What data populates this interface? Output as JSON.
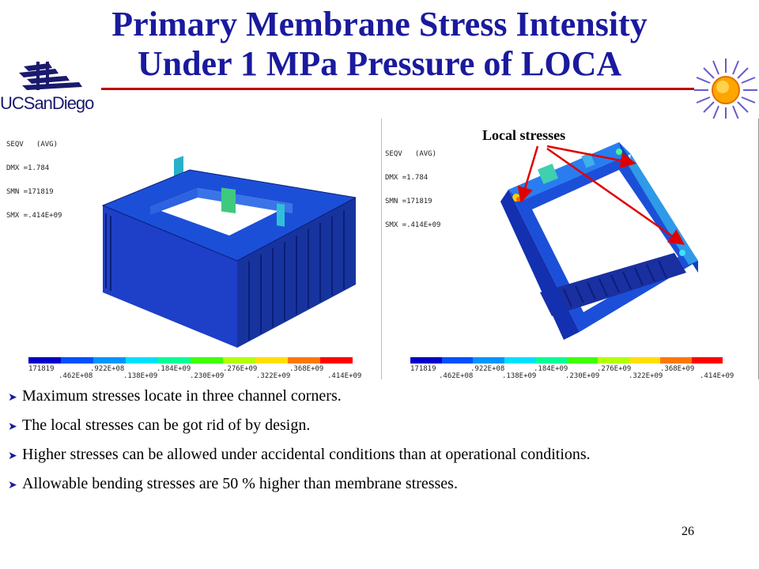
{
  "title": {
    "line1": "Primary Membrane Stress Intensity",
    "line2": "Under 1 MPa Pressure of LOCA"
  },
  "logo_text": "UCSanDiego",
  "panels": [
    {
      "legend": [
        "SEQV   (AVG)",
        "DMX =1.784",
        "SMN =171819",
        "SMX =.414E+09"
      ],
      "colorbar_top": [
        "171819",
        ".922E+08",
        ".184E+09",
        ".276E+09",
        ".368E+09"
      ],
      "colorbar_bottom": [
        ".462E+08",
        ".138E+09",
        ".230E+09",
        ".322E+09",
        ".414E+09"
      ]
    },
    {
      "legend": [
        "SEQV   (AVG)",
        "DMX =1.784",
        "SMN =171819",
        "SMX =.414E+09"
      ],
      "colorbar_top": [
        "171819",
        ".922E+08",
        ".184E+09",
        ".276E+09",
        ".368E+09"
      ],
      "colorbar_bottom": [
        ".462E+08",
        ".138E+09",
        ".230E+09",
        ".322E+09",
        ".414E+09"
      ]
    }
  ],
  "colorbar_colors": [
    "#0000c8",
    "#0050ff",
    "#0096ff",
    "#00e0ff",
    "#00ff96",
    "#40ff00",
    "#b4ff00",
    "#ffe000",
    "#ff7800",
    "#ff0000"
  ],
  "annotation": "Local stresses",
  "bullets": [
    "Maximum stresses locate in three channel corners.",
    "The local stresses can be got rid of by design.",
    "Higher stresses can be allowed under accidental conditions than at operational conditions.",
    "Allowable bending stresses are 50 % higher than membrane stresses."
  ],
  "page_number": "26"
}
